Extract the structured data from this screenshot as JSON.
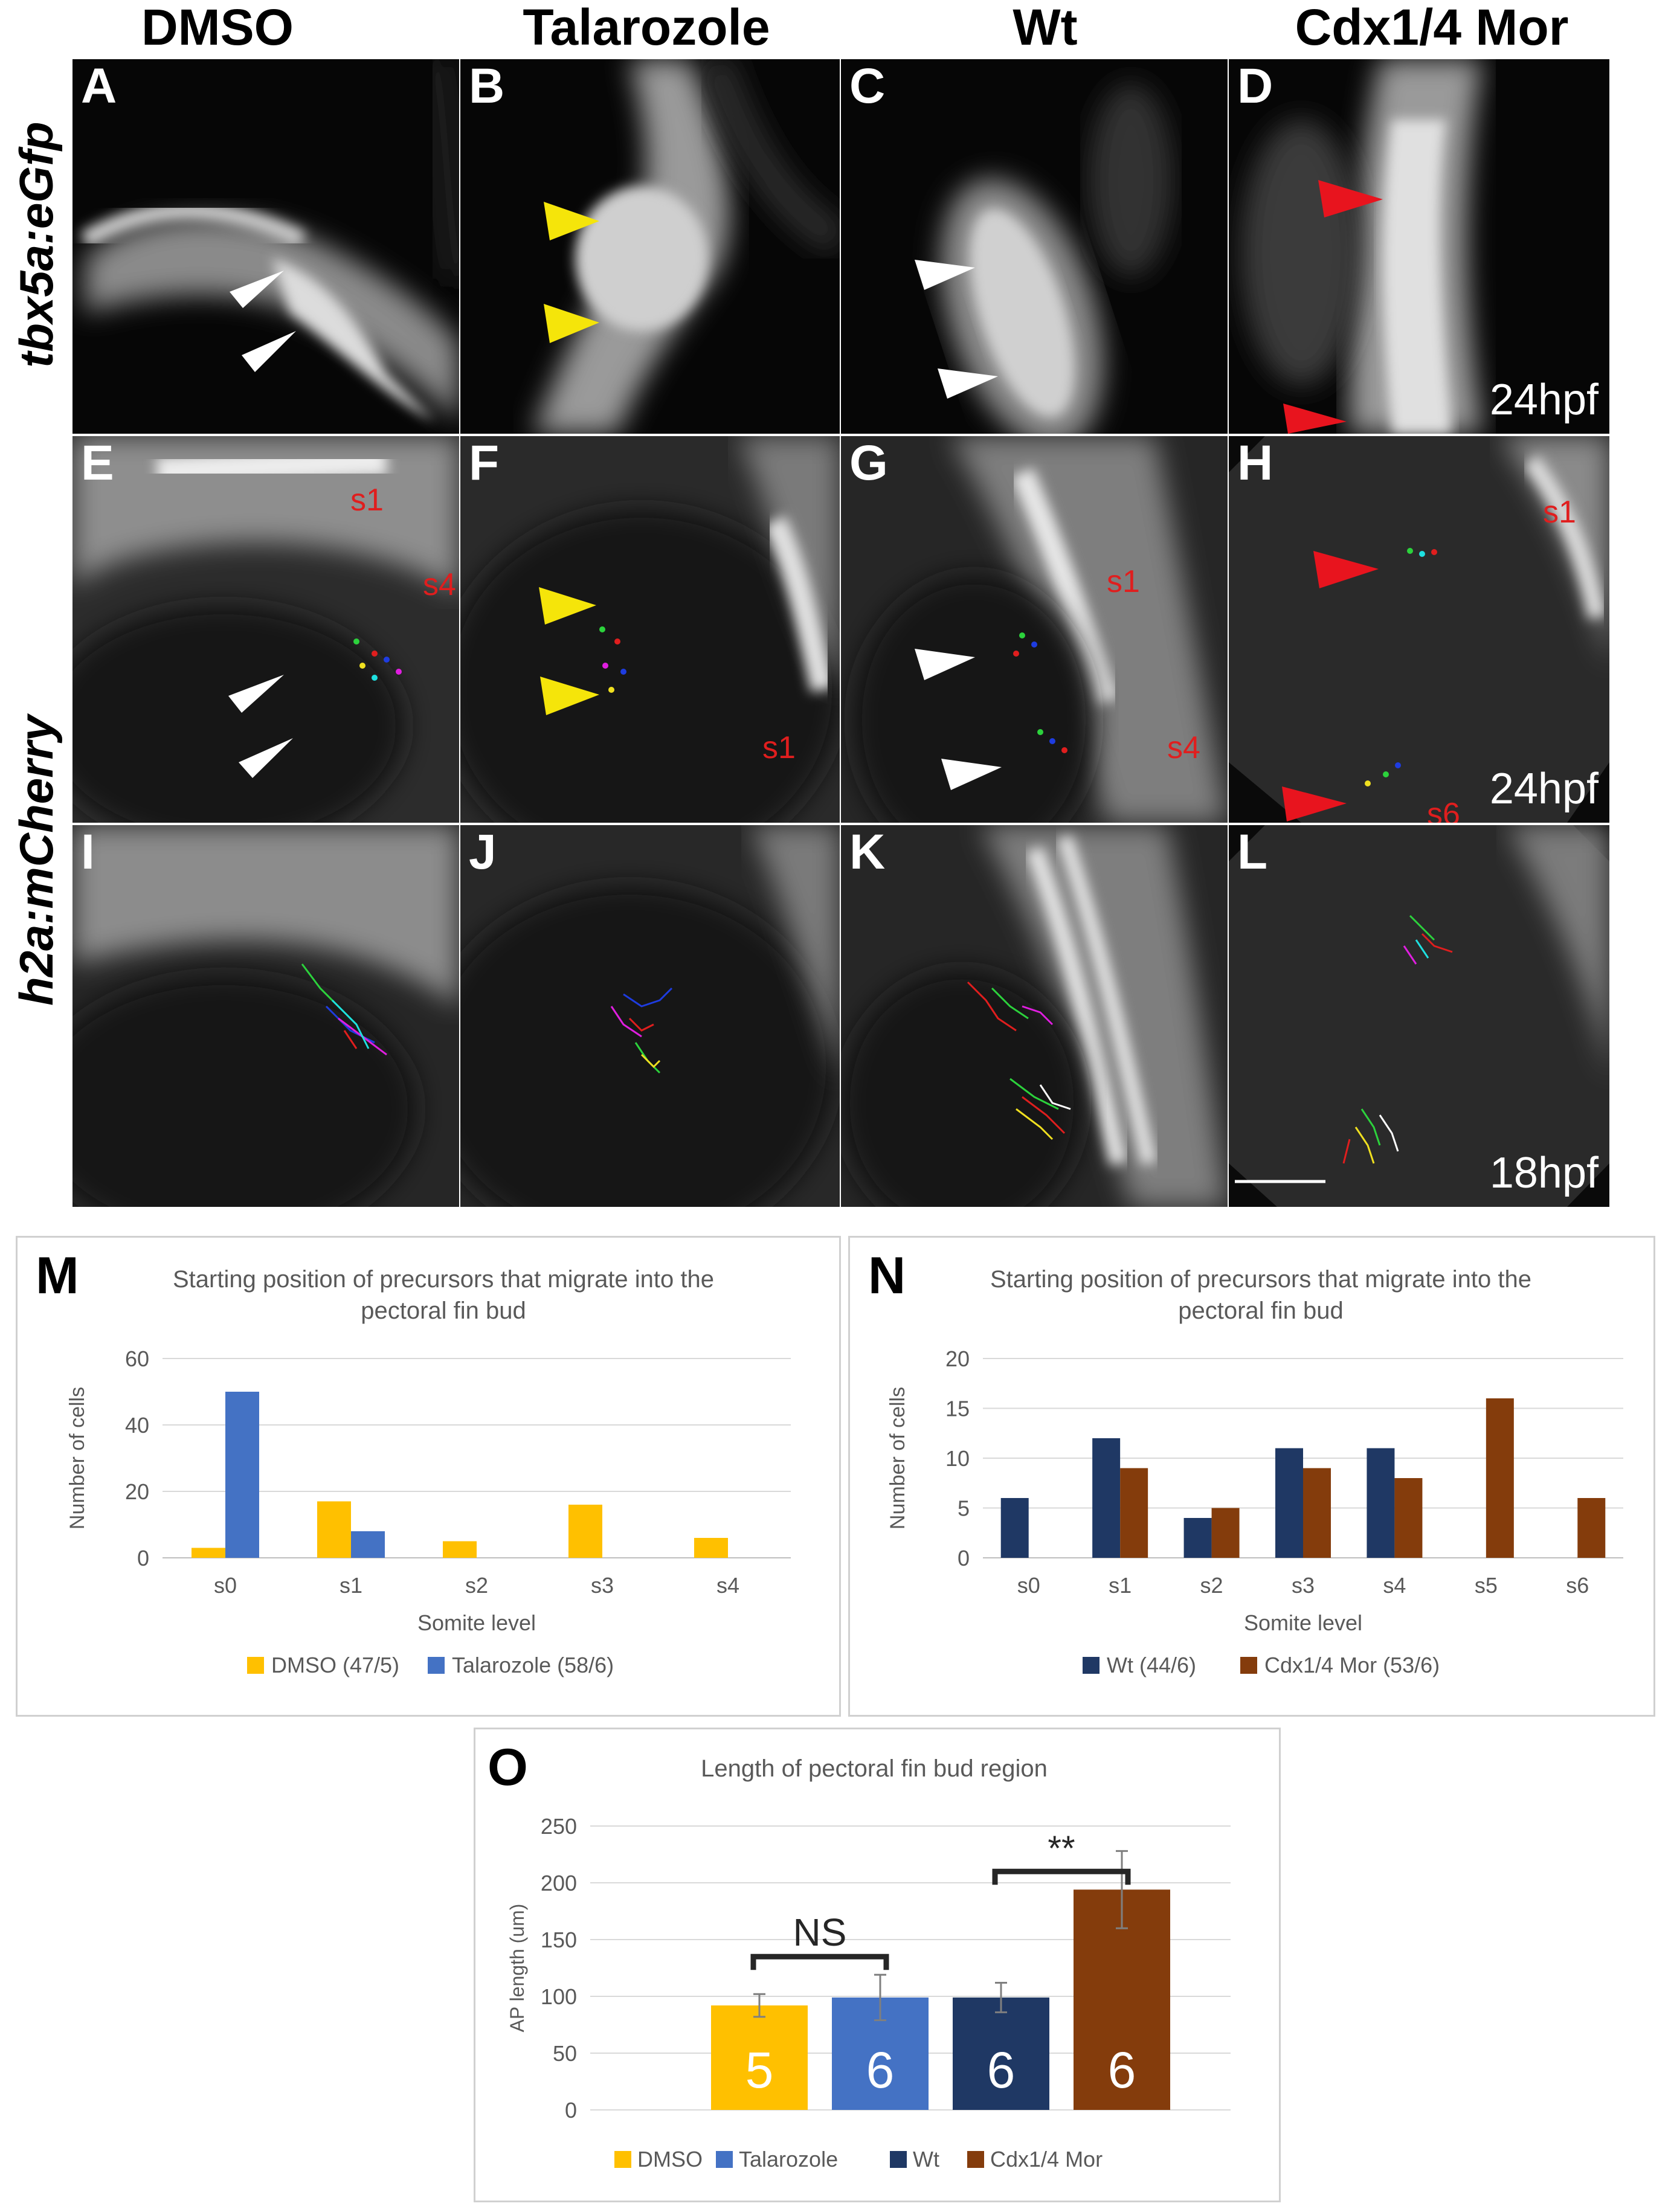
{
  "column_headers": [
    "DMSO",
    "Talarozole",
    "Wt",
    "Cdx1/4 Mor"
  ],
  "row_headers": {
    "tbx5a": "tbx5a:eGfp",
    "h2a": "h2a:mCherry"
  },
  "panels": [
    {
      "letter": "A",
      "time": ""
    },
    {
      "letter": "B",
      "time": ""
    },
    {
      "letter": "C",
      "time": ""
    },
    {
      "letter": "D",
      "time": "24hpf"
    },
    {
      "letter": "E",
      "time": "",
      "somites": [
        "s1",
        "s4"
      ]
    },
    {
      "letter": "F",
      "time": "",
      "somites": [
        "s1"
      ]
    },
    {
      "letter": "G",
      "time": "",
      "somites": [
        "s1",
        "s4"
      ]
    },
    {
      "letter": "H",
      "time": "24hpf",
      "somites": [
        "s1",
        "s6"
      ]
    },
    {
      "letter": "I",
      "time": ""
    },
    {
      "letter": "J",
      "time": ""
    },
    {
      "letter": "K",
      "time": ""
    },
    {
      "letter": "L",
      "time": "18hpf"
    }
  ],
  "arrow_colors": {
    "white": "#ffffff",
    "yellow": "#f5e50a",
    "red": "#e8141e"
  },
  "series_colors": {
    "DMSO": "#FFC000",
    "Talarozole": "#4472C4",
    "Wt": "#1F3864",
    "Cdx1/4 Mor": "#843C0C"
  },
  "chart_data": [
    {
      "letter": "M",
      "type": "bar",
      "title": "Starting position of precursors that migrate into the pectoral fin bud",
      "xlabel": "Somite level",
      "ylabel": "Number of cells",
      "categories": [
        "s0",
        "s1",
        "s2",
        "s3",
        "s4"
      ],
      "ylim": [
        0,
        60
      ],
      "yticks": [
        0,
        20,
        40,
        60
      ],
      "grid": true,
      "legend": "bottom",
      "series": [
        {
          "name": "DMSO (47/5)",
          "color": "#FFC000",
          "values": [
            3,
            17,
            5,
            16,
            6
          ]
        },
        {
          "name": "Talarozole (58/6)",
          "color": "#4472C4",
          "values": [
            50,
            8,
            0,
            0,
            0
          ]
        }
      ]
    },
    {
      "letter": "N",
      "type": "bar",
      "title": "Starting position of precursors that migrate into the pectoral fin bud",
      "xlabel": "Somite level",
      "ylabel": "Number of cells",
      "categories": [
        "s0",
        "s1",
        "s2",
        "s3",
        "s4",
        "s5",
        "s6"
      ],
      "ylim": [
        0,
        20
      ],
      "yticks": [
        0,
        5,
        10,
        15,
        20
      ],
      "grid": true,
      "legend": "bottom",
      "series": [
        {
          "name": "Wt (44/6)",
          "color": "#1F3864",
          "values": [
            6,
            12,
            4,
            11,
            11,
            0,
            0
          ]
        },
        {
          "name": "Cdx1/4 Mor (53/6)",
          "color": "#843C0C",
          "values": [
            0,
            9,
            5,
            9,
            8,
            16,
            6
          ]
        }
      ]
    },
    {
      "letter": "O",
      "type": "bar",
      "title": "Length of pectoral fin bud region",
      "xlabel": "",
      "ylabel": "AP length (um)",
      "categories": [
        "DMSO",
        "Talarozole",
        "Wt",
        "Cdx1/4 Mor"
      ],
      "ylim": [
        0,
        250
      ],
      "yticks": [
        0,
        50,
        100,
        150,
        200,
        250
      ],
      "grid": true,
      "legend": "bottom",
      "values": [
        92,
        99,
        99,
        194
      ],
      "errors": [
        10,
        20,
        13,
        34
      ],
      "bar_labels": [
        "5",
        "6",
        "6",
        "6"
      ],
      "colors": [
        "#FFC000",
        "#4472C4",
        "#1F3864",
        "#843C0C"
      ],
      "significance": [
        {
          "label": "NS",
          "between": [
            0,
            1
          ]
        },
        {
          "label": "**",
          "between": [
            2,
            3
          ]
        }
      ]
    }
  ]
}
